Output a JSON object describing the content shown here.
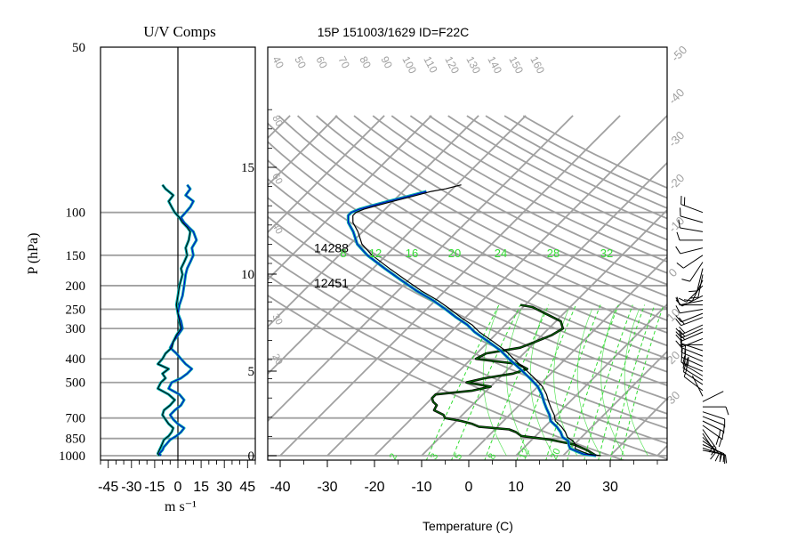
{
  "header": {
    "title": "15P 151003/1629 ID=F22C",
    "left_title": "U/V Comps",
    "xlabel": "Temperature (C)",
    "ylabel": "P (hPa)",
    "left_xlabel": "m s⁻¹"
  },
  "colors": {
    "grid": "#a0a0a0",
    "mixing": "#33dd33",
    "temperature": "#000000",
    "dewpoint": "#0000cc",
    "cyan": "#00aaaa",
    "parcel": "#006600",
    "axes": "#000000"
  },
  "chart_data": [
    {
      "type": "line",
      "name": "skew-t",
      "pressure_levels": [
        1000,
        850,
        700,
        500,
        400,
        300,
        250,
        200,
        150,
        100,
        50
      ],
      "x_ticks": [
        -40,
        -30,
        -20,
        -10,
        0,
        10,
        20,
        30
      ],
      "xlim": [
        -43,
        41
      ],
      "ylim": [
        1000,
        50
      ],
      "height_axis_km": [
        0,
        5,
        10,
        15
      ],
      "isotherm_labels": [
        -50,
        -40,
        -30,
        -20,
        -10,
        0,
        10,
        20,
        30
      ],
      "theta_labels": [
        40,
        50,
        60,
        70,
        80,
        90,
        100,
        110,
        120,
        130,
        140,
        150,
        160
      ],
      "theta_side_labels": [
        80,
        60,
        40,
        30,
        20
      ],
      "mixing_ratio_top_labels": [
        8,
        12,
        16,
        20,
        24,
        28,
        32
      ],
      "mixing_ratio_bottom_labels": [
        2,
        3,
        5,
        8,
        12,
        20
      ],
      "annotations": [
        {
          "text": "14288",
          "p": 140,
          "t": -33
        },
        {
          "text": "12451",
          "p": 195,
          "t": -33
        }
      ],
      "temperature": {
        "p": [
          1000,
          985,
          960,
          935,
          905,
          870,
          840,
          800,
          760,
          720,
          680,
          640,
          600,
          560,
          520,
          480,
          440,
          400,
          370,
          340,
          310,
          290,
          270,
          250,
          230,
          210,
          190,
          170,
          150,
          135,
          120,
          110,
          103,
          100,
          97,
          93,
          90,
          86,
          82,
          80,
          77
        ],
        "t": [
          28,
          25,
          23,
          21,
          20.5,
          19,
          17,
          15.5,
          13.5,
          11,
          9.5,
          7.5,
          5.5,
          3.5,
          1,
          -2.5,
          -6.5,
          -11,
          -14.5,
          -19,
          -24,
          -27,
          -31,
          -35,
          -39.5,
          -45,
          -50.5,
          -56.5,
          -63,
          -67.5,
          -71,
          -74,
          -75.5,
          -75.5,
          -74.5,
          -72,
          -70,
          -67,
          -64,
          -61.5,
          -59
        ]
      },
      "dewpoint": {
        "p": [
          1000,
          985,
          960,
          935,
          905,
          870,
          840,
          800,
          760,
          720,
          680,
          640,
          600,
          560,
          520,
          480,
          440,
          400,
          370,
          340,
          310,
          290,
          270,
          250,
          230,
          210,
          190,
          170,
          150,
          135,
          120,
          110,
          103,
          100,
          97,
          93,
          90,
          86,
          82
        ],
        "t": [
          27,
          24,
          22,
          20,
          19,
          18,
          16,
          14.5,
          12.5,
          10,
          8.5,
          6.5,
          4.5,
          2.5,
          0,
          -3.5,
          -7.5,
          -12,
          -15.5,
          -20,
          -25,
          -28,
          -32,
          -36,
          -40.5,
          -46,
          -51.5,
          -57.5,
          -64,
          -68.5,
          -72,
          -75,
          -76.5,
          -76.5,
          -75.5,
          -73,
          -71,
          -68,
          -65
        ]
      },
      "parcel": {
        "p": [
          1000,
          950,
          900,
          860,
          830,
          800,
          780,
          760,
          740,
          720,
          700,
          680,
          650,
          620,
          600,
          580,
          560,
          540,
          520,
          500,
          480,
          460,
          440,
          420,
          400,
          380,
          360,
          340,
          320,
          300,
          280,
          260,
          245,
          240
        ],
        "t": [
          27,
          24,
          20,
          14,
          7,
          5,
          3,
          -4,
          -6,
          -9,
          -13,
          -14,
          -17,
          -17.5,
          -19,
          -20,
          -20,
          -13,
          -10,
          -16,
          -13,
          -8,
          -6,
          -9,
          -19,
          -18,
          -12,
          -10,
          -8,
          -7,
          -9,
          -14,
          -18,
          -21
        ]
      },
      "wind_barbs": {
        "p": [
          950,
          930,
          900,
          870,
          840,
          810,
          780,
          750,
          720,
          690,
          660,
          630,
          600,
          570,
          540,
          510,
          490,
          470,
          450,
          430,
          410,
          390,
          370,
          350,
          330,
          310,
          300,
          290,
          270,
          260,
          250,
          240,
          230,
          220,
          200,
          190,
          180,
          170,
          160,
          150,
          140,
          130,
          120,
          110,
          100
        ],
        "u": [
          -10,
          -12,
          -14,
          -12,
          -10,
          -8,
          -10,
          -14,
          -16,
          -10,
          -6,
          -8,
          -4,
          2,
          8,
          12,
          16,
          20,
          24,
          18,
          14,
          10,
          6,
          4,
          10,
          14,
          18,
          22,
          16,
          10,
          12,
          14,
          10,
          8,
          6,
          4,
          2,
          2,
          4,
          6,
          8,
          10,
          12,
          14,
          16
        ],
        "v": [
          2,
          4,
          6,
          8,
          10,
          12,
          14,
          10,
          8,
          4,
          2,
          0,
          -2,
          -4,
          -6,
          -8,
          -10,
          -12,
          -10,
          -8,
          -6,
          -4,
          -2,
          0,
          4,
          6,
          8,
          10,
          6,
          4,
          2,
          0,
          2,
          4,
          6,
          8,
          10,
          8,
          6,
          4,
          2,
          0,
          -2,
          -4,
          -6
        ]
      }
    },
    {
      "type": "line",
      "name": "uv-components",
      "title": "U/V Comps",
      "x_ticks": [
        -45,
        -30,
        -15,
        0,
        15,
        30,
        45
      ],
      "xlim": [
        -50,
        50
      ],
      "u": {
        "p": [
          1000,
          980,
          950,
          920,
          890,
          860,
          830,
          800,
          770,
          740,
          710,
          680,
          650,
          620,
          590,
          560,
          530,
          500,
          480,
          460,
          440,
          420,
          400,
          380,
          360,
          340,
          320,
          300,
          280,
          260,
          240,
          220,
          200,
          180,
          170,
          160,
          150,
          140,
          130,
          120,
          115,
          110,
          105,
          100,
          95,
          90,
          85,
          80,
          77
        ],
        "v": [
          -12,
          -13,
          -12,
          -11,
          -10,
          -9,
          -6,
          -4,
          -3,
          -6,
          -8,
          -10,
          -9,
          -5,
          -2,
          -6,
          -13,
          -11,
          -8,
          -10,
          -6,
          -13,
          -10,
          -8,
          -4,
          -3,
          -1,
          2,
          1,
          0,
          -1,
          0,
          1,
          3,
          2,
          4,
          6,
          5,
          7,
          8,
          6,
          3,
          1,
          -2,
          -4,
          -6,
          -3,
          -8,
          -10
        ]
      },
      "v": {
        "p": [
          1000,
          980,
          950,
          920,
          890,
          860,
          830,
          800,
          770,
          740,
          710,
          680,
          650,
          620,
          590,
          560,
          530,
          500,
          480,
          460,
          440,
          420,
          400,
          380,
          360,
          340,
          320,
          300,
          280,
          260,
          240,
          220,
          200,
          180,
          170,
          160,
          150,
          140,
          130,
          120,
          115,
          110,
          105,
          100,
          95,
          90,
          85,
          80,
          77
        ],
        "v": [
          -11,
          -12,
          -10,
          -9,
          -7,
          -5,
          -1,
          2,
          4,
          0,
          -3,
          -5,
          -2,
          2,
          4,
          1,
          -6,
          -4,
          2,
          6,
          9,
          5,
          2,
          -1,
          -5,
          -3,
          0,
          3,
          2,
          0,
          1,
          3,
          4,
          5,
          6,
          8,
          10,
          9,
          12,
          10,
          7,
          4,
          2,
          5,
          8,
          10,
          5,
          8,
          6
        ]
      }
    }
  ]
}
